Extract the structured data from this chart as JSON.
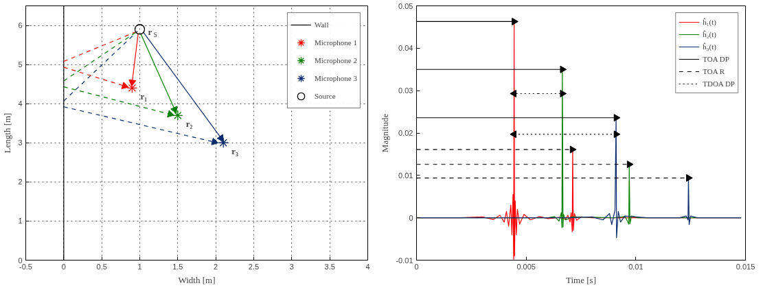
{
  "chart_data": [
    {
      "type": "scatter",
      "xlabel": "Width [m]",
      "ylabel": "Length [m]",
      "xlim": [
        -0.5,
        4
      ],
      "ylim": [
        0,
        6.5
      ],
      "xticks": [
        -0.5,
        0,
        0.5,
        1,
        1.5,
        2,
        2.5,
        3,
        3.5,
        4
      ],
      "yticks": [
        0,
        1,
        2,
        3,
        4,
        5,
        6
      ],
      "grid": true,
      "legend": "top right",
      "series": [
        {
          "name": "Wall",
          "type": "line",
          "color": "#000000",
          "x": [
            0,
            0
          ],
          "values": [
            0,
            6.5
          ],
          "line_style": "solid",
          "marker": "none"
        },
        {
          "type": "line",
          "color": "#ff0000",
          "x": [
            0.98,
            0.9
          ],
          "values": [
            5.8,
            4.55
          ],
          "line_style": "solid",
          "marker": "triangle"
        },
        {
          "type": "line",
          "color": "#008000",
          "x": [
            1.01,
            1.46
          ],
          "values": [
            5.8,
            3.85
          ],
          "line_style": "solid",
          "marker": "triangle"
        },
        {
          "type": "line",
          "color": "#0a2a6e",
          "x": [
            1.05,
            2.07
          ],
          "values": [
            5.82,
            3.12
          ],
          "line_style": "solid",
          "marker": "triangle"
        },
        {
          "type": "line",
          "color": "#ff0000",
          "x": [
            0,
            0.97
          ],
          "values": [
            5.08,
            5.85
          ],
          "line_style": "dashed",
          "marker": "none"
        },
        {
          "type": "line",
          "color": "#008000",
          "x": [
            0,
            0.97
          ],
          "values": [
            4.58,
            5.85
          ],
          "line_style": "dashed",
          "marker": "none"
        },
        {
          "type": "line",
          "color": "#0a2a6e",
          "x": [
            0,
            0.97
          ],
          "values": [
            4.07,
            5.85
          ],
          "line_style": "dashed",
          "marker": "none"
        },
        {
          "type": "line",
          "color": "#ff0000",
          "x": [
            0,
            0.8
          ],
          "values": [
            4.93,
            4.45
          ],
          "line_style": "dashed",
          "marker": "triangle"
        },
        {
          "type": "line",
          "color": "#008000",
          "x": [
            0,
            1.4
          ],
          "values": [
            4.43,
            3.73
          ],
          "line_style": "dashed",
          "marker": "triangle"
        },
        {
          "type": "line",
          "color": "#0a2a6e",
          "x": [
            0,
            1.98
          ],
          "values": [
            3.92,
            3.02
          ],
          "line_style": "dashed",
          "marker": "triangle"
        },
        {
          "name": "Microphone 1",
          "color": "#ff0000",
          "x": [
            0.9
          ],
          "values": [
            4.4
          ],
          "marker": "cross"
        },
        {
          "name": "Microphone 2",
          "color": "#008000",
          "x": [
            1.5
          ],
          "values": [
            3.7
          ],
          "marker": "cross"
        },
        {
          "name": "Microphone 3",
          "color": "#0a2a6e",
          "x": [
            2.1
          ],
          "values": [
            3.0
          ],
          "marker": "cross"
        },
        {
          "name": "Source",
          "color": "#000000",
          "x": [
            1.0
          ],
          "values": [
            5.9
          ],
          "marker": "circle"
        }
      ],
      "annotations": [
        {
          "text": "r$_{S}$",
          "x": 1.0,
          "y": 5.9
        },
        {
          "text": "r₁",
          "x": 0.9,
          "y": 4.4
        },
        {
          "text": "r₂",
          "x": 1.5,
          "y": 3.7
        },
        {
          "text": "r₃",
          "x": 2.1,
          "y": 3.0
        }
      ]
    },
    {
      "type": "line",
      "xlabel": "Time [s]",
      "ylabel": "Magnitude",
      "xlim": [
        0,
        0.015
      ],
      "ylim": [
        -0.01,
        0.05
      ],
      "xticks": [
        0,
        0.005,
        0.01,
        0.015
      ],
      "yticks": [
        -0.01,
        0,
        0.01,
        0.02,
        0.03,
        0.04,
        0.05
      ],
      "grid": false,
      "legend": "top right",
      "series": [
        {
          "name": "ĥ₁(t)",
          "color": "#ff0000",
          "line_style": "solid",
          "x": [
            0,
            0.002,
            0.003,
            0.0035,
            0.0038,
            0.004,
            0.0041,
            0.0042,
            0.0043,
            0.00435,
            0.0044,
            0.00443,
            0.00445,
            0.00447,
            0.0045,
            0.00455,
            0.0046,
            0.0047,
            0.0049,
            0.0052,
            0.0056,
            0.006,
            0.0065,
            0.0068,
            0.0069,
            0.007,
            0.00705,
            0.0071,
            0.00712,
            0.00715,
            0.0072,
            0.0073,
            0.0075,
            0.008,
            0.01,
            0.0148
          ],
          "values": [
            0,
            0,
            0.0002,
            -0.0004,
            0.0006,
            -0.001,
            0.0015,
            -0.002,
            0.003,
            -0.004,
            0.0055,
            -0.0098,
            0.0463,
            -0.009,
            0.004,
            -0.004,
            0.002,
            -0.0015,
            0.0008,
            -0.0005,
            0.0003,
            -0.0002,
            0.0001,
            -0.0004,
            0.0006,
            -0.001,
            0.0012,
            -0.0033,
            0.0161,
            -0.003,
            0.001,
            -0.0006,
            0.0002,
            0,
            0,
            0
          ]
        },
        {
          "name": "ĥ₂(t)",
          "color": "#008000",
          "line_style": "solid",
          "x": [
            0,
            0.006,
            0.0063,
            0.0065,
            0.0066,
            0.00663,
            0.00665,
            0.00668,
            0.0067,
            0.0068,
            0.0071,
            0.009,
            0.0095,
            0.0096,
            0.00968,
            0.0097,
            0.00973,
            0.0098,
            0.0101,
            0.0148
          ],
          "values": [
            0,
            0,
            0.0003,
            -0.0008,
            0.0012,
            -0.0023,
            0.035,
            -0.0022,
            0.0008,
            -0.0005,
            0.0002,
            0,
            0.0003,
            -0.0006,
            -0.0015,
            0.0126,
            -0.0014,
            0.0004,
            0,
            0
          ]
        },
        {
          "name": "ĥ₃(t)",
          "color": "#0a2a6e",
          "line_style": "solid",
          "x": [
            0,
            0.007,
            0.008,
            0.0085,
            0.0088,
            0.0089,
            0.00905,
            0.0091,
            0.00912,
            0.0092,
            0.0093,
            0.0095,
            0.0105,
            0.012,
            0.0123,
            0.01238,
            0.0124,
            0.01243,
            0.0125,
            0.0128,
            0.0148
          ],
          "values": [
            0,
            0,
            0.0002,
            -0.0005,
            0.001,
            -0.0016,
            0.0018,
            0.0236,
            -0.0047,
            0.0015,
            -0.001,
            0.0004,
            0,
            0,
            0.0004,
            -0.0005,
            0.0094,
            -0.0016,
            0.0004,
            0,
            0
          ]
        },
        {
          "name": "TOA DP",
          "color": "#000000",
          "line_style": "solid",
          "marker": "triangle",
          "x": [
            0,
            0.00445,
            null,
            0,
            0.00665,
            null,
            0,
            0.0091
          ],
          "values": [
            0.0463,
            0.0463,
            null,
            0.035,
            0.035,
            null,
            0.0236,
            0.0236
          ]
        },
        {
          "name": "TOA R",
          "color": "#000000",
          "line_style": "dashed",
          "marker": "triangle",
          "x": [
            0,
            0.0071,
            null,
            0,
            0.0097,
            null,
            0,
            0.0124
          ],
          "values": [
            0.0161,
            0.0161,
            null,
            0.0126,
            0.0126,
            null,
            0.0094,
            0.0094
          ]
        },
        {
          "name": "TDOA DP",
          "color": "#000000",
          "line_style": "dotted",
          "marker": "triangle",
          "x": [
            0.00555,
            0.00445,
            null,
            0.00555,
            0.00665,
            null,
            0.006775,
            0.00445,
            null,
            0.006775,
            0.0091
          ],
          "values": [
            0.0293,
            0.0293,
            null,
            0.0293,
            0.0293,
            null,
            0.0197,
            0.0197,
            null,
            0.0197,
            0.0197
          ]
        }
      ]
    }
  ]
}
